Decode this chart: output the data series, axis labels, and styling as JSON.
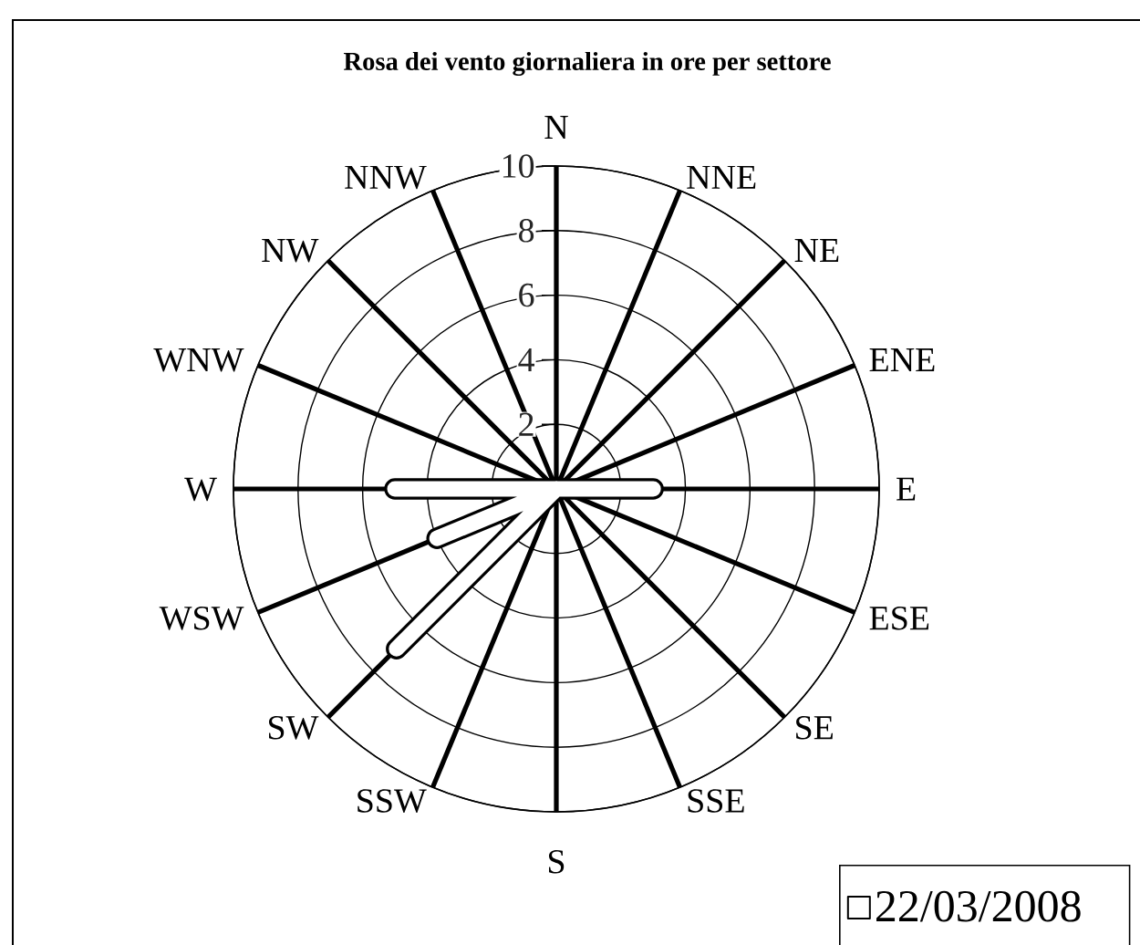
{
  "chart_data": {
    "type": "radar",
    "title": "Rosa dei vento giornaliera in ore per settore",
    "categories": [
      "N",
      "NNE",
      "NE",
      "ENE",
      "E",
      "ESE",
      "SE",
      "SSE",
      "S",
      "SSW",
      "SW",
      "WSW",
      "W",
      "WNW",
      "NW",
      "NNW"
    ],
    "series": [
      {
        "name": "22/03/2008",
        "color": "#000000",
        "values": [
          0,
          0,
          0,
          0,
          3,
          0,
          0,
          0,
          0,
          0,
          7,
          4,
          5,
          0,
          0,
          0
        ]
      }
    ],
    "ylim": [
      0,
      10
    ],
    "yticks": [
      2,
      4,
      6,
      8,
      10
    ],
    "grid": true,
    "legend": "bottom right"
  }
}
